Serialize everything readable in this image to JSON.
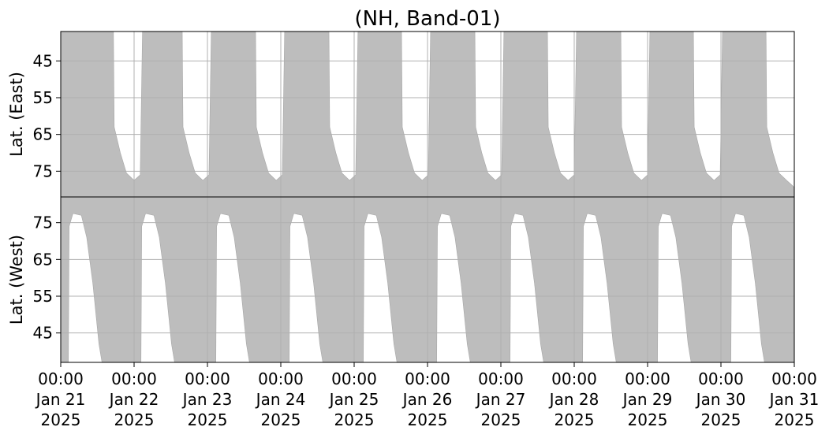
{
  "chart_data": [
    {
      "type": "area",
      "title": "(NH, Band-01)",
      "ylabel": "Lat. (East)",
      "color": "#bdbdbd",
      "grid": true,
      "ylim": [
        37,
        82
      ],
      "inverted": true,
      "yticks": [
        45,
        55,
        65,
        75
      ],
      "x": [
        "2025-01-21 00:00",
        "2025-01-21 17:15",
        "2025-01-21 17:30",
        "2025-01-21 19:30",
        "2025-01-21 21:30",
        "2025-01-22 00:00",
        "2025-01-22 02:00",
        "2025-01-22 02:45",
        "2025-01-22 15:45",
        "2025-01-22 16:00",
        "2025-01-22 18:00",
        "2025-01-22 20:00",
        "2025-01-22 22:30",
        "2025-01-23 00:30",
        "2025-01-23 01:15",
        "2025-01-23 15:45",
        "2025-01-23 16:00",
        "2025-01-23 18:00",
        "2025-01-23 20:00",
        "2025-01-23 22:30",
        "2025-01-24 00:30",
        "2025-01-24 01:15",
        "2025-01-24 15:45",
        "2025-01-24 16:00",
        "2025-01-24 18:00",
        "2025-01-24 20:00",
        "2025-01-24 22:30",
        "2025-01-25 00:30",
        "2025-01-25 01:15",
        "2025-01-25 15:30",
        "2025-01-25 15:45",
        "2025-01-25 17:45",
        "2025-01-25 19:45",
        "2025-01-25 22:15",
        "2025-01-26 00:15",
        "2025-01-26 01:00",
        "2025-01-26 15:30",
        "2025-01-26 15:45",
        "2025-01-26 17:45",
        "2025-01-26 19:45",
        "2025-01-26 22:15",
        "2025-01-27 00:15",
        "2025-01-27 01:00",
        "2025-01-27 15:15",
        "2025-01-27 15:30",
        "2025-01-27 17:30",
        "2025-01-27 19:30",
        "2025-01-27 22:00",
        "2025-01-28 00:00",
        "2025-01-28 00:45",
        "2025-01-28 15:15",
        "2025-01-28 15:30",
        "2025-01-28 17:30",
        "2025-01-28 19:30",
        "2025-01-28 22:00",
        "2025-01-29 00:00",
        "2025-01-29 00:45",
        "2025-01-29 15:00",
        "2025-01-29 15:15",
        "2025-01-29 17:15",
        "2025-01-29 19:15",
        "2025-01-29 21:45",
        "2025-01-29 23:45",
        "2025-01-30 00:30",
        "2025-01-30 14:45",
        "2025-01-30 15:00",
        "2025-01-30 17:00",
        "2025-01-30 19:00",
        "2025-01-30 21:30",
        "2025-01-30 23:30",
        "2025-01-31 00:00"
      ],
      "values": [
        37,
        37,
        63,
        70,
        75.5,
        77.5,
        76,
        37,
        37,
        63,
        70,
        75.5,
        77.5,
        76,
        37,
        37,
        63,
        70,
        75.5,
        77.5,
        76,
        37,
        37,
        63,
        70,
        75.5,
        77.5,
        76,
        37,
        37,
        63,
        70,
        75.5,
        77.5,
        76,
        37,
        37,
        63,
        70,
        75.5,
        77.5,
        76,
        37,
        37,
        63,
        70,
        75.5,
        77.5,
        76,
        37,
        37,
        63,
        70,
        75.5,
        77.5,
        76,
        37,
        37,
        63,
        70,
        75.5,
        77.5,
        76,
        37,
        37,
        63,
        70,
        75.5,
        77.5,
        79,
        79.5
      ]
    },
    {
      "type": "area",
      "ylabel": "Lat. (West)",
      "color": "#bdbdbd",
      "grid": true,
      "ylim": [
        37,
        82
      ],
      "yticks": [
        45,
        55,
        65,
        75
      ],
      "xlim": [
        "2025-01-21 00:00",
        "2025-01-31 00:00"
      ],
      "xticks": [
        {
          "value": "2025-01-21 00:00",
          "label": [
            "00:00",
            "Jan 21",
            "2025"
          ]
        },
        {
          "value": "2025-01-22 00:00",
          "label": [
            "00:00",
            "Jan 22",
            "2025"
          ]
        },
        {
          "value": "2025-01-23 00:00",
          "label": [
            "00:00",
            "Jan 23",
            "2025"
          ]
        },
        {
          "value": "2025-01-24 00:00",
          "label": [
            "00:00",
            "Jan 24",
            "2025"
          ]
        },
        {
          "value": "2025-01-25 00:00",
          "label": [
            "00:00",
            "Jan 25",
            "2025"
          ]
        },
        {
          "value": "2025-01-26 00:00",
          "label": [
            "00:00",
            "Jan 26",
            "2025"
          ]
        },
        {
          "value": "2025-01-27 00:00",
          "label": [
            "00:00",
            "Jan 27",
            "2025"
          ]
        },
        {
          "value": "2025-01-28 00:00",
          "label": [
            "00:00",
            "Jan 28",
            "2025"
          ]
        },
        {
          "value": "2025-01-29 00:00",
          "label": [
            "00:00",
            "Jan 29",
            "2025"
          ]
        },
        {
          "value": "2025-01-30 00:00",
          "label": [
            "00:00",
            "Jan 30",
            "2025"
          ]
        },
        {
          "value": "2025-01-31 00:00",
          "label": [
            "00:00",
            "Jan 31",
            "2025"
          ]
        }
      ],
      "x": [
        "2025-01-21 00:00",
        "2025-01-21 02:30",
        "2025-01-21 02:45",
        "2025-01-21 04:00",
        "2025-01-21 06:45",
        "2025-01-21 08:30",
        "2025-01-21 10:30",
        "2025-01-21 12:30",
        "2025-01-21 13:30",
        "2025-01-22 02:15",
        "2025-01-22 02:30",
        "2025-01-22 03:45",
        "2025-01-22 06:30",
        "2025-01-22 08:15",
        "2025-01-22 10:15",
        "2025-01-22 12:15",
        "2025-01-22 13:15",
        "2025-01-23 02:45",
        "2025-01-23 03:00",
        "2025-01-23 04:15",
        "2025-01-23 07:00",
        "2025-01-23 08:45",
        "2025-01-23 10:45",
        "2025-01-23 12:45",
        "2025-01-23 13:45",
        "2025-01-24 02:45",
        "2025-01-24 03:00",
        "2025-01-24 04:15",
        "2025-01-24 07:00",
        "2025-01-24 08:45",
        "2025-01-24 10:45",
        "2025-01-24 12:45",
        "2025-01-24 13:45",
        "2025-01-25 03:00",
        "2025-01-25 03:15",
        "2025-01-25 04:30",
        "2025-01-25 07:15",
        "2025-01-25 09:00",
        "2025-01-25 11:00",
        "2025-01-25 13:00",
        "2025-01-25 14:00",
        "2025-01-26 03:00",
        "2025-01-26 03:15",
        "2025-01-26 04:30",
        "2025-01-26 07:15",
        "2025-01-26 09:00",
        "2025-01-26 11:00",
        "2025-01-26 13:00",
        "2025-01-26 14:00",
        "2025-01-27 03:00",
        "2025-01-27 03:15",
        "2025-01-27 04:30",
        "2025-01-27 07:15",
        "2025-01-27 09:00",
        "2025-01-27 11:00",
        "2025-01-27 13:00",
        "2025-01-27 14:00",
        "2025-01-28 02:45",
        "2025-01-28 03:00",
        "2025-01-28 04:15",
        "2025-01-28 07:00",
        "2025-01-28 08:45",
        "2025-01-28 10:45",
        "2025-01-28 12:45",
        "2025-01-28 13:45",
        "2025-01-29 03:15",
        "2025-01-29 03:30",
        "2025-01-29 04:45",
        "2025-01-29 07:30",
        "2025-01-29 09:15",
        "2025-01-29 11:15",
        "2025-01-29 13:15",
        "2025-01-29 14:15",
        "2025-01-30 03:15",
        "2025-01-30 03:30",
        "2025-01-30 04:45",
        "2025-01-30 07:30",
        "2025-01-30 09:15",
        "2025-01-30 11:15",
        "2025-01-30 13:15",
        "2025-01-30 14:15",
        "2025-01-31 00:00"
      ],
      "values": [
        37,
        37,
        74,
        77.5,
        77,
        71,
        58.5,
        42,
        37,
        37,
        74,
        77.5,
        77,
        71,
        58.5,
        42,
        37,
        37,
        74,
        77.5,
        77,
        71,
        58.5,
        42,
        37,
        37,
        74,
        77.5,
        77,
        71,
        58.5,
        42,
        37,
        37,
        74,
        77.5,
        77,
        71,
        58.5,
        42,
        37,
        37,
        74,
        77.5,
        77,
        71,
        58.5,
        42,
        37,
        37,
        74,
        77.5,
        77,
        71,
        58.5,
        42,
        37,
        37,
        74,
        77.5,
        77,
        71,
        58.5,
        42,
        37,
        37,
        74,
        77.5,
        77,
        71,
        58.5,
        42,
        37,
        37,
        74,
        77.5,
        77,
        71,
        58.5,
        42,
        37,
        37
      ]
    }
  ]
}
